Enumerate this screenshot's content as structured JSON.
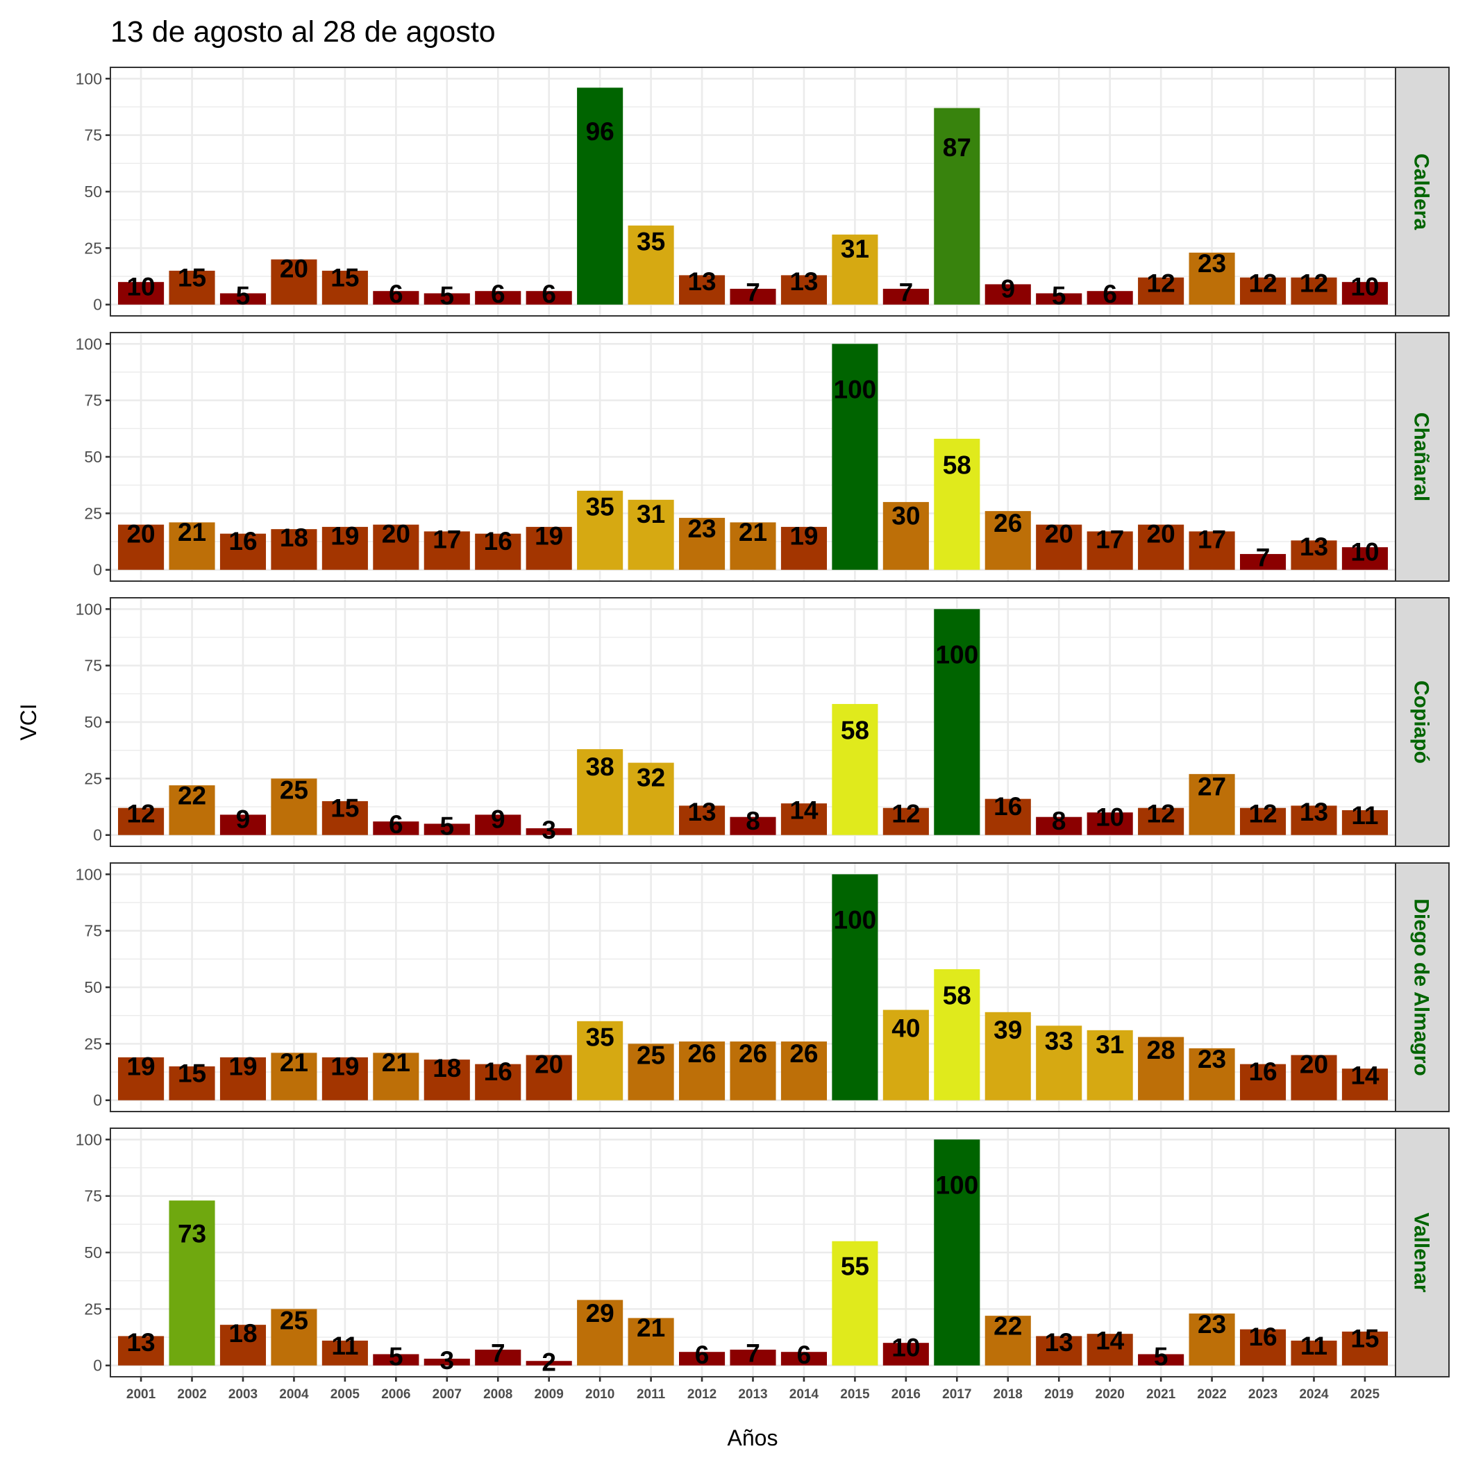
{
  "chart_data": {
    "type": "bar",
    "title": "13 de agosto al 28 de agosto",
    "xlabel": "Años",
    "ylabel": "VCI",
    "ylim": [
      0,
      100
    ],
    "yticks": [
      "0",
      "25",
      "50",
      "75",
      "100"
    ],
    "grid": true,
    "legend": "none",
    "categories": [
      "2001",
      "2002",
      "2003",
      "2004",
      "2005",
      "2006",
      "2007",
      "2008",
      "2009",
      "2010",
      "2011",
      "2012",
      "2013",
      "2014",
      "2015",
      "2016",
      "2017",
      "2018",
      "2019",
      "2020",
      "2021",
      "2022",
      "2023",
      "2024",
      "2025"
    ],
    "series": [
      {
        "name": "Caldera",
        "values": [
          10,
          15,
          5,
          20,
          15,
          6,
          5,
          6,
          6,
          96,
          35,
          13,
          7,
          13,
          31,
          7,
          87,
          9,
          5,
          6,
          12,
          23,
          12,
          12,
          10
        ]
      },
      {
        "name": "Chañaral",
        "values": [
          20,
          21,
          16,
          18,
          19,
          20,
          17,
          16,
          19,
          35,
          31,
          23,
          21,
          19,
          100,
          30,
          58,
          26,
          20,
          17,
          20,
          17,
          7,
          13,
          10
        ]
      },
      {
        "name": "Copiapó",
        "values": [
          12,
          22,
          9,
          25,
          15,
          6,
          5,
          9,
          3,
          38,
          32,
          13,
          8,
          14,
          58,
          12,
          100,
          16,
          8,
          10,
          12,
          27,
          12,
          13,
          11
        ]
      },
      {
        "name": "Diego de Almagro",
        "values": [
          19,
          15,
          19,
          21,
          19,
          21,
          18,
          16,
          20,
          35,
          25,
          26,
          26,
          26,
          100,
          40,
          58,
          39,
          33,
          31,
          28,
          23,
          16,
          20,
          14
        ]
      },
      {
        "name": "Vallenar",
        "values": [
          13,
          73,
          18,
          25,
          11,
          5,
          3,
          7,
          2,
          29,
          21,
          6,
          7,
          6,
          55,
          10,
          100,
          22,
          13,
          14,
          5,
          23,
          16,
          11,
          15
        ]
      }
    ],
    "color_scale": [
      {
        "max": 10,
        "color": "#8B0000"
      },
      {
        "max": 20,
        "color": "#A33500"
      },
      {
        "max": 30,
        "color": "#BD6F08"
      },
      {
        "max": 50,
        "color": "#D6A912"
      },
      {
        "max": 70,
        "color": "#E0EA1C"
      },
      {
        "max": 80,
        "color": "#6FA80F"
      },
      {
        "max": 90,
        "color": "#38830D"
      },
      {
        "max": 100,
        "color": "#006400"
      }
    ],
    "strip_text_color": "#006400"
  }
}
